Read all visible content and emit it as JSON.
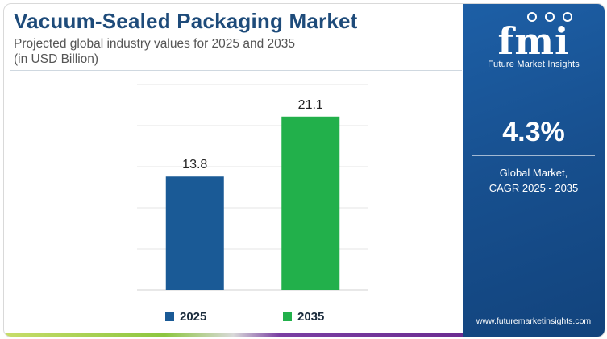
{
  "header": {
    "title": "Vacuum-Sealed Packaging Market",
    "subtitle_line1": "Projected global industry values for 2025 and 2035",
    "subtitle_line2": "(in USD Billion)"
  },
  "colors": {
    "title": "#1e4b7a",
    "bar_2025": "#1a5a96",
    "bar_2035": "#22b04b",
    "panel": "#1a56a0"
  },
  "chart_data": {
    "type": "bar",
    "categories": [
      "2025",
      "2035"
    ],
    "values": [
      13.8,
      21.1
    ],
    "colors": [
      "#1a5a96",
      "#22b04b"
    ],
    "ylim": [
      0,
      25
    ],
    "grid": true,
    "legend": "bottom",
    "value_labels": [
      "13.8",
      "21.1"
    ]
  },
  "legend": {
    "items": [
      {
        "label": "2025",
        "color": "#1a5a96"
      },
      {
        "label": "2035",
        "color": "#22b04b"
      }
    ]
  },
  "panel": {
    "logo_text": "fmi",
    "logo_subtitle": "Future Market Insights",
    "cagr_value": "4.3%",
    "cagr_label_line1": "Global Market,",
    "cagr_label_line2": "CAGR 2025 - 2035",
    "url": "www.futuremarketinsights.com"
  }
}
